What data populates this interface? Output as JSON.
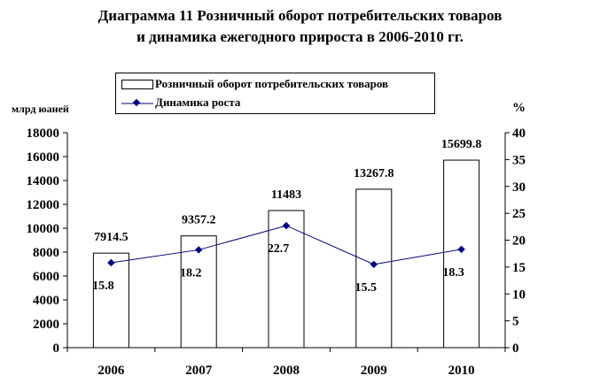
{
  "title_line1": "Диаграмма 11 Розничный оборот потребительских товаров",
  "title_line2": "и динамика ежегодного прироста в 2006-2010 гг.",
  "chart_data": {
    "type": "bar",
    "categories": [
      "2006",
      "2007",
      "2008",
      "2009",
      "2010"
    ],
    "series": [
      {
        "name": "Розничный оборот потребительских товаров",
        "type": "bar",
        "axis": "left",
        "values": [
          7914.5,
          9357.2,
          11483,
          13267.8,
          15699.8
        ],
        "labels": [
          "7914.5",
          "9357.2",
          "11483",
          "13267.8",
          "15699.8"
        ]
      },
      {
        "name": "Динамика роста",
        "type": "line",
        "axis": "right",
        "values": [
          15.8,
          18.2,
          22.7,
          15.5,
          18.3
        ],
        "labels": [
          "15.8",
          "18.2",
          "22.7",
          "15.5",
          "18.3"
        ]
      }
    ],
    "ylabel_left": "млрд юаней",
    "ylabel_right": "%",
    "ylim_left": [
      0,
      18000
    ],
    "ylim_right": [
      0,
      40
    ],
    "yticks_left": [
      "0",
      "2000",
      "4000",
      "6000",
      "8000",
      "10000",
      "12000",
      "14000",
      "16000",
      "18000"
    ],
    "yticks_right": [
      "0",
      "5",
      "10",
      "15",
      "20",
      "25",
      "30",
      "35",
      "40"
    ],
    "grid": false,
    "legend_position": "top",
    "colors": {
      "bar_fill": "#ffffff",
      "bar_stroke": "#000000",
      "line": "#000080",
      "marker": "#000080"
    }
  }
}
